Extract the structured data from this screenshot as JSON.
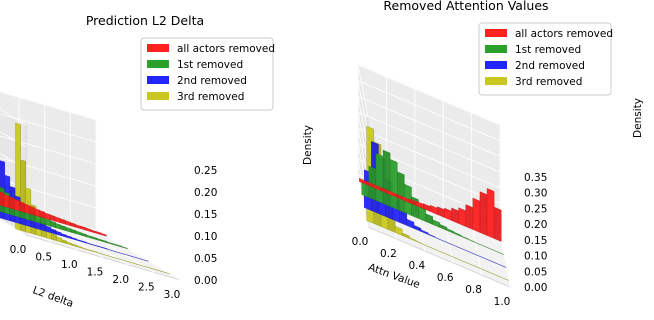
{
  "chart_data": [
    {
      "type": "bar",
      "title": "Prediction L2 Delta",
      "xlabel": "L2 delta",
      "zlabel": "Density",
      "xlim": [
        0.0,
        3.0
      ],
      "zlim": [
        0.0,
        0.25
      ],
      "x_ticks": [
        "0.0",
        "0.5",
        "1.0",
        "1.5",
        "2.0",
        "2.5",
        "3.0"
      ],
      "z_ticks": [
        "0.00",
        "0.05",
        "0.10",
        "0.15",
        "0.20",
        "0.25"
      ],
      "legend_position": "top-right",
      "series": [
        {
          "name": "all actors removed",
          "color": "#ff2020",
          "x": [
            0.05,
            0.15,
            0.25,
            0.35,
            0.45,
            0.55,
            0.65,
            0.75,
            0.85,
            0.95,
            1.05,
            1.15,
            1.25,
            1.35,
            1.45,
            1.55,
            1.65,
            1.75,
            1.85,
            1.95,
            2.05,
            2.15,
            2.25,
            2.35,
            2.45,
            2.55,
            2.65,
            2.75,
            2.85,
            2.95
          ],
          "values": [
            0.06,
            0.055,
            0.05,
            0.047,
            0.044,
            0.041,
            0.038,
            0.035,
            0.032,
            0.03,
            0.027,
            0.025,
            0.023,
            0.021,
            0.019,
            0.017,
            0.015,
            0.014,
            0.012,
            0.011,
            0.01,
            0.009,
            0.008,
            0.007,
            0.006,
            0.006,
            0.005,
            0.004,
            0.004,
            0.003
          ]
        },
        {
          "name": "1st removed",
          "color": "#2ca02c",
          "x": [
            0.05,
            0.15,
            0.25,
            0.35,
            0.45,
            0.55,
            0.65,
            0.75,
            0.85,
            0.95,
            1.05,
            1.15,
            1.25,
            1.35,
            1.45,
            1.55,
            1.65,
            1.75,
            1.85,
            1.95,
            2.05,
            2.15,
            2.25,
            2.35,
            2.45,
            2.55,
            2.65,
            2.75,
            2.85,
            2.95
          ],
          "values": [
            0.13,
            0.11,
            0.09,
            0.076,
            0.064,
            0.055,
            0.047,
            0.04,
            0.034,
            0.029,
            0.025,
            0.021,
            0.018,
            0.016,
            0.014,
            0.012,
            0.01,
            0.009,
            0.008,
            0.007,
            0.006,
            0.005,
            0.004,
            0.004,
            0.003,
            0.003,
            0.002,
            0.002,
            0.002,
            0.001
          ]
        },
        {
          "name": "2nd removed",
          "color": "#2424ff",
          "x": [
            0.05,
            0.15,
            0.25,
            0.35,
            0.45,
            0.55,
            0.65,
            0.75,
            0.85,
            0.95,
            1.05,
            1.15,
            1.25,
            1.35,
            1.45,
            1.55,
            1.65,
            1.75,
            1.85,
            1.95,
            2.05,
            2.15,
            2.25,
            2.35,
            2.45,
            2.55,
            2.65,
            2.75,
            2.85,
            2.95
          ],
          "values": [
            0.17,
            0.13,
            0.1,
            0.078,
            0.06,
            0.047,
            0.036,
            0.028,
            0.021,
            0.016,
            0.012,
            0.009,
            0.007,
            0.005,
            0.004,
            0.003,
            0.002,
            0.002,
            0.001,
            0.001,
            0.001,
            0.001,
            0.0,
            0.0,
            0.0,
            0.0,
            0.0,
            0.0,
            0.0,
            0.0
          ]
        },
        {
          "name": "3rd removed",
          "color": "#c8c820",
          "x": [
            0.05,
            0.15,
            0.25,
            0.35,
            0.45,
            0.55,
            0.65,
            0.75,
            0.85,
            0.95,
            1.05,
            1.15,
            1.25,
            1.35,
            1.45,
            1.55,
            1.65,
            1.75,
            1.85,
            1.95,
            2.05,
            2.15,
            2.25,
            2.35,
            2.45,
            2.55,
            2.65,
            2.75,
            2.85,
            2.95
          ],
          "values": [
            0.24,
            0.16,
            0.1,
            0.065,
            0.042,
            0.028,
            0.019,
            0.013,
            0.009,
            0.006,
            0.004,
            0.003,
            0.002,
            0.001,
            0.001,
            0.001,
            0.0,
            0.0,
            0.0,
            0.0,
            0.0,
            0.0,
            0.0,
            0.0,
            0.0,
            0.0,
            0.0,
            0.0,
            0.0,
            0.0
          ]
        }
      ]
    },
    {
      "type": "bar",
      "title": "Removed Attention Values",
      "xlabel": "Attn Value",
      "zlabel": "Density",
      "xlim": [
        0.0,
        1.0
      ],
      "zlim": [
        0.0,
        0.35
      ],
      "x_ticks": [
        "0.0",
        "0.2",
        "0.4",
        "0.6",
        "0.8",
        "1.0"
      ],
      "z_ticks": [
        "0.00",
        "0.05",
        "0.10",
        "0.15",
        "0.20",
        "0.25",
        "0.30",
        "0.35"
      ],
      "legend_position": "top-right",
      "series": [
        {
          "name": "all actors removed",
          "color": "#ff2020",
          "x": [
            0.025,
            0.075,
            0.125,
            0.175,
            0.225,
            0.275,
            0.325,
            0.375,
            0.425,
            0.475,
            0.525,
            0.575,
            0.625,
            0.675,
            0.725,
            0.775,
            0.825,
            0.875,
            0.925,
            0.975
          ],
          "values": [
            0.01,
            0.01,
            0.01,
            0.01,
            0.01,
            0.01,
            0.01,
            0.012,
            0.014,
            0.016,
            0.02,
            0.025,
            0.03,
            0.04,
            0.05,
            0.07,
            0.1,
            0.13,
            0.15,
            0.1
          ]
        },
        {
          "name": "1st removed",
          "color": "#2ca02c",
          "x": [
            0.025,
            0.075,
            0.125,
            0.175,
            0.225,
            0.275,
            0.325,
            0.375,
            0.425,
            0.475,
            0.525,
            0.575,
            0.625,
            0.675,
            0.725,
            0.775,
            0.825,
            0.875,
            0.925,
            0.975
          ],
          "values": [
            0.04,
            0.1,
            0.15,
            0.17,
            0.15,
            0.12,
            0.09,
            0.06,
            0.04,
            0.025,
            0.015,
            0.01,
            0.006,
            0.004,
            0.002,
            0.001,
            0.0,
            0.0,
            0.0,
            0.0
          ]
        },
        {
          "name": "2nd removed",
          "color": "#2424ff",
          "x": [
            0.025,
            0.075,
            0.125,
            0.175,
            0.225,
            0.275,
            0.325,
            0.375,
            0.425,
            0.475,
            0.525,
            0.575,
            0.625,
            0.675,
            0.725,
            0.775,
            0.825,
            0.875,
            0.925,
            0.975
          ],
          "values": [
            0.12,
            0.22,
            0.18,
            0.12,
            0.07,
            0.04,
            0.02,
            0.01,
            0.005,
            0.002,
            0.0,
            0.0,
            0.0,
            0.0,
            0.0,
            0.0,
            0.0,
            0.0,
            0.0,
            0.0
          ]
        },
        {
          "name": "3rd removed",
          "color": "#c8c820",
          "x": [
            0.025,
            0.075,
            0.125,
            0.175,
            0.225,
            0.275,
            0.325,
            0.375,
            0.425,
            0.475,
            0.525,
            0.575,
            0.625,
            0.675,
            0.725,
            0.775,
            0.825,
            0.875,
            0.925,
            0.975
          ],
          "values": [
            0.3,
            0.26,
            0.14,
            0.06,
            0.02,
            0.008,
            0.003,
            0.001,
            0.0,
            0.0,
            0.0,
            0.0,
            0.0,
            0.0,
            0.0,
            0.0,
            0.0,
            0.0,
            0.0,
            0.0
          ]
        }
      ]
    }
  ]
}
